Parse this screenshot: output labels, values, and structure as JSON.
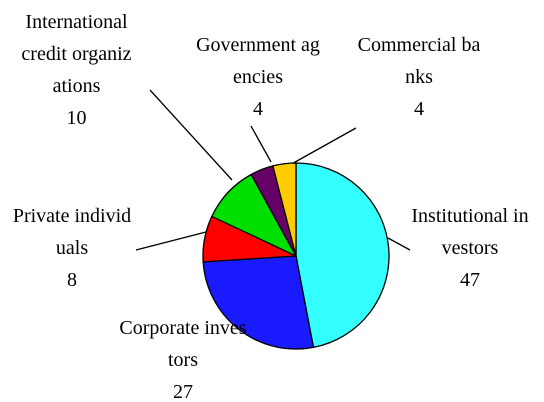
{
  "chart_data": {
    "type": "pie",
    "categories": [
      "Institutional investors",
      "Corporate investors",
      "Private individuals",
      "International credit organizations",
      "Government agencies",
      "Commercial banks"
    ],
    "values": [
      47,
      27,
      8,
      10,
      4,
      4
    ],
    "colors": [
      "#33ffff",
      "#1a1aff",
      "#ff0000",
      "#00e000",
      "#660066",
      "#ffcc00"
    ]
  }
}
